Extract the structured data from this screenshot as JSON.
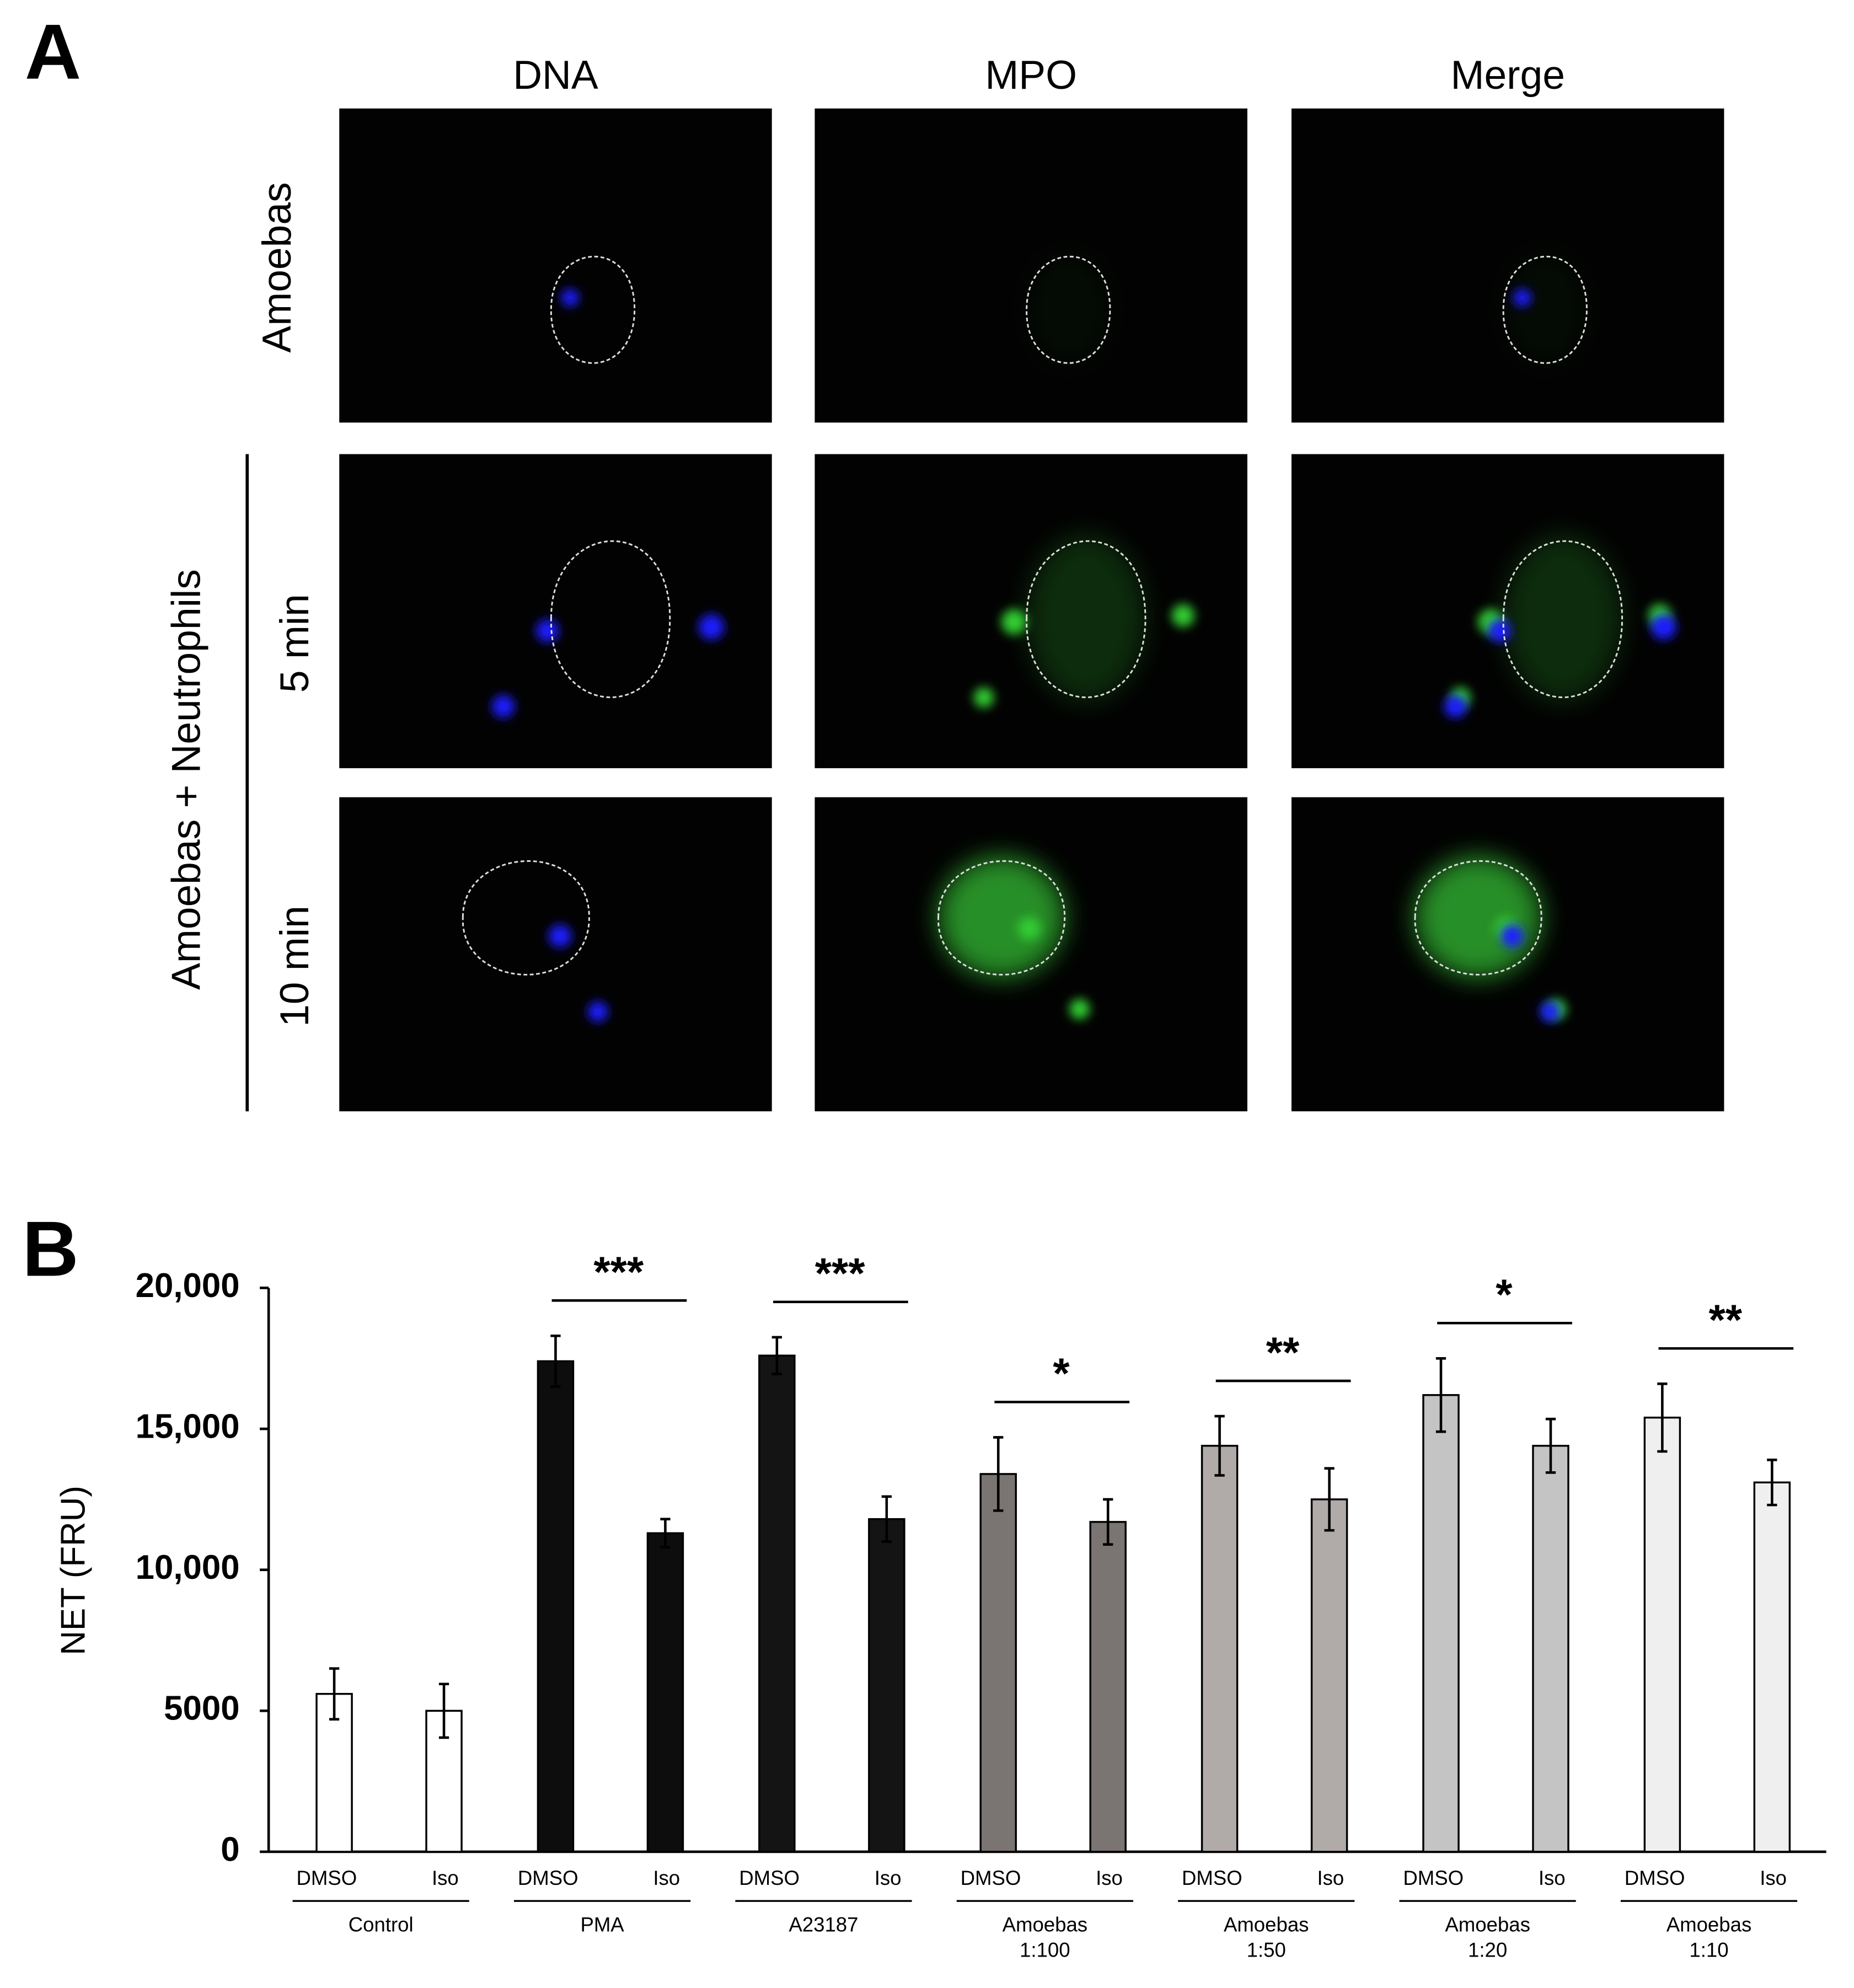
{
  "panel_a": {
    "label": "A",
    "columns": [
      "DNA",
      "MPO",
      "Merge"
    ],
    "rows": [
      "Amoebas",
      "5 min",
      "10 min"
    ],
    "row_group": "Amoebas + Neutrophils"
  },
  "chart_data": {
    "type": "grouped_bar",
    "panel_label": "B",
    "y_label": "NET (FRU)",
    "ylim": [
      0,
      20000
    ],
    "yticks": [
      0,
      5000,
      {
        "value": 10000,
        "label": "10,000"
      },
      {
        "value": 15000,
        "label": "15,000"
      },
      {
        "value": 20000,
        "label": "20,000"
      }
    ],
    "groups": [
      {
        "label": [
          "Control"
        ],
        "color": "#ffffff",
        "bars": [
          "DMSO",
          "Iso"
        ],
        "values": [
          5600,
          5000
        ],
        "errors": [
          900,
          950
        ]
      },
      {
        "label": [
          "PMA"
        ],
        "color": "#0d0d0d",
        "bars": [
          "DMSO",
          "Iso"
        ],
        "values": [
          17400,
          11300
        ],
        "errors": [
          900,
          500
        ],
        "significance": "***"
      },
      {
        "label": [
          "A23187"
        ],
        "color": "#141414",
        "bars": [
          "DMSO",
          "Iso"
        ],
        "values": [
          17600,
          11800
        ],
        "errors": [
          650,
          800
        ],
        "significance": "***"
      },
      {
        "label": [
          "Amoebas",
          "1:100"
        ],
        "color": "#7a7472",
        "bars": [
          "DMSO",
          "Iso"
        ],
        "values": [
          13400,
          11700
        ],
        "errors": [
          1300,
          800
        ],
        "significance": "*"
      },
      {
        "label": [
          "Amoebas",
          "1:50"
        ],
        "color": "#b0aaa8",
        "bars": [
          "DMSO",
          "Iso"
        ],
        "values": [
          14400,
          12500
        ],
        "errors": [
          1050,
          1100
        ],
        "significance": "**"
      },
      {
        "label": [
          "Amoebas",
          "1:20"
        ],
        "color": "#c4c4c4",
        "bars": [
          "DMSO",
          "Iso"
        ],
        "values": [
          16200,
          14400
        ],
        "errors": [
          1300,
          950
        ],
        "significance": "*"
      },
      {
        "label": [
          "Amoebas",
          "1:10"
        ],
        "color": "#efefef",
        "bars": [
          "DMSO",
          "Iso"
        ],
        "values": [
          15400,
          13100
        ],
        "errors": [
          1200,
          800
        ],
        "significance": "**"
      }
    ]
  }
}
